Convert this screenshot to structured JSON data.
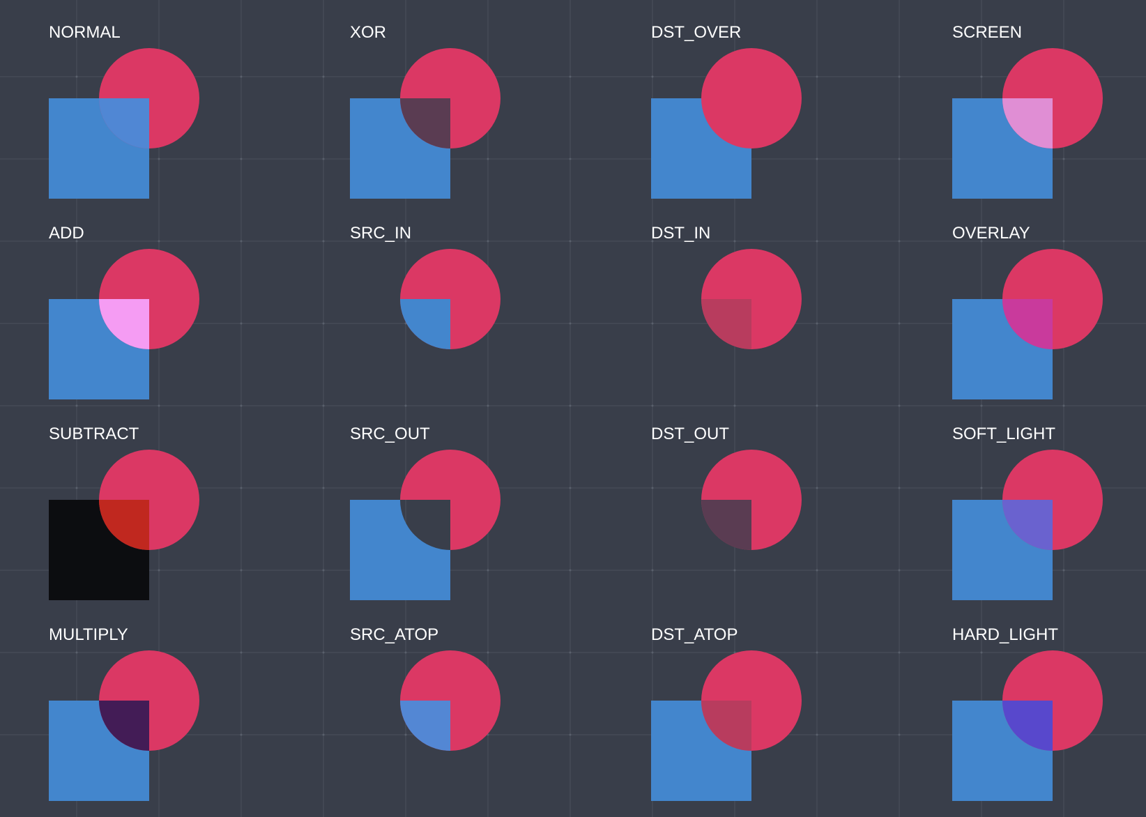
{
  "colors": {
    "background": "#393e4a",
    "grid": "#4a505c",
    "square": "#4386cd",
    "circle": "#db3864",
    "label": "#ffffff"
  },
  "cells": [
    {
      "label": "NORMAL",
      "mode": "normal"
    },
    {
      "label": "XOR",
      "mode": "xor"
    },
    {
      "label": "DST_OVER",
      "mode": "dst_over"
    },
    {
      "label": "SCREEN",
      "mode": "screen"
    },
    {
      "label": "ADD",
      "mode": "add"
    },
    {
      "label": "SRC_IN",
      "mode": "src_in"
    },
    {
      "label": "DST_IN",
      "mode": "dst_in"
    },
    {
      "label": "OVERLAY",
      "mode": "overlay"
    },
    {
      "label": "SUBTRACT",
      "mode": "subtract"
    },
    {
      "label": "SRC_OUT",
      "mode": "src_out"
    },
    {
      "label": "DST_OUT",
      "mode": "dst_out"
    },
    {
      "label": "SOFT_LIGHT",
      "mode": "soft_light"
    },
    {
      "label": "MULTIPLY",
      "mode": "multiply"
    },
    {
      "label": "SRC_ATOP",
      "mode": "src_atop"
    },
    {
      "label": "DST_ATOP",
      "mode": "dst_atop"
    },
    {
      "label": "HARD_LIGHT",
      "mode": "hard_light"
    }
  ]
}
